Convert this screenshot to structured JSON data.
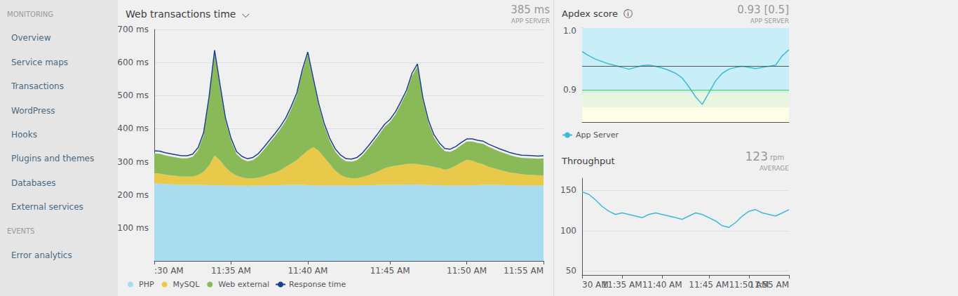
{
  "chart_data": [
    {
      "type": "area",
      "title": "Web transactions time  ⌵",
      "annotations": [
        "385 ms",
        "APP SERVER",
        "MONITORING",
        "Overview",
        "Service maps",
        "Transactions",
        "WordPress",
        "Hooks",
        "Plugins and themes",
        "Databases",
        "External services",
        "EVENTS",
        "Error analytics"
      ],
      "categories": [
        ":30 AM",
        null,
        null,
        null,
        null,
        null,
        null,
        null,
        null,
        null,
        null,
        null,
        null,
        null,
        "11:35 AM",
        null,
        null,
        null,
        null,
        null,
        null,
        null,
        null,
        null,
        null,
        null,
        null,
        null,
        "11:40 AM",
        null,
        null,
        null,
        null,
        null,
        null,
        null,
        null,
        null,
        null,
        null,
        null,
        null,
        null,
        "11:45 AM",
        null,
        null,
        null,
        null,
        null,
        null,
        null,
        null,
        null,
        null,
        null,
        null,
        null,
        "11:50 AM",
        null,
        null,
        null,
        null,
        null,
        null,
        null,
        null,
        null,
        null,
        null,
        null,
        null,
        "11:55 AM"
      ],
      "series": [
        {
          "name": "PHP",
          "type": "area",
          "color": "#aadcf0",
          "values": [
            235,
            234,
            233,
            232,
            231,
            230,
            230,
            230,
            230,
            230,
            229,
            229,
            229,
            228,
            228,
            228,
            228,
            227,
            228,
            228,
            228,
            229,
            229,
            229,
            230,
            230,
            230,
            230,
            229,
            229,
            228,
            228,
            228,
            228,
            228,
            228,
            228,
            228,
            229,
            229,
            229,
            230,
            230,
            230,
            230,
            230,
            231,
            231,
            231,
            230,
            230,
            229,
            229,
            228,
            228,
            228,
            228,
            228,
            229,
            229,
            230,
            230,
            230,
            230,
            229,
            229,
            229,
            228,
            228,
            228,
            228,
            228
          ]
        },
        {
          "name": "MySQL",
          "type": "area",
          "color": "#e8c94a",
          "values": [
            30,
            30,
            28,
            27,
            26,
            25,
            25,
            25,
            30,
            40,
            60,
            90,
            75,
            55,
            40,
            30,
            25,
            22,
            22,
            24,
            28,
            33,
            38,
            45,
            55,
            65,
            75,
            90,
            105,
            115,
            105,
            85,
            65,
            45,
            32,
            25,
            22,
            22,
            25,
            30,
            36,
            42,
            50,
            55,
            58,
            60,
            62,
            63,
            62,
            60,
            58,
            55,
            52,
            48,
            52,
            60,
            70,
            78,
            74,
            68,
            62,
            55,
            50,
            45,
            42,
            38,
            36,
            34,
            33,
            32,
            31,
            30
          ]
        },
        {
          "name": "Web external",
          "type": "area",
          "color": "#8aba58",
          "values": [
            60,
            60,
            58,
            57,
            56,
            55,
            55,
            60,
            75,
            110,
            200,
            310,
            220,
            140,
            95,
            65,
            55,
            52,
            55,
            65,
            80,
            95,
            110,
            125,
            140,
            165,
            195,
            250,
            290,
            200,
            135,
            95,
            70,
            58,
            52,
            48,
            50,
            55,
            65,
            80,
            95,
            110,
            125,
            135,
            155,
            185,
            215,
            265,
            295,
            195,
            130,
            90,
            68,
            56,
            50,
            50,
            52,
            55,
            58,
            60,
            62,
            60,
            58,
            56,
            54,
            52,
            50,
            50,
            50,
            50,
            50,
            52
          ]
        },
        {
          "name": "Response time",
          "type": "line",
          "color": "#1c3f8a",
          "values": [
            333,
            332,
            327,
            324,
            321,
            318,
            318,
            323,
            343,
            388,
            497,
            637,
            532,
            431,
            371,
            331,
            316,
            309,
            313,
            325,
            344,
            365,
            385,
            407,
            433,
            468,
            508,
            578,
            632,
            552,
            476,
            416,
            371,
            339,
            320,
            309,
            308,
            313,
            327,
            347,
            368,
            390,
            413,
            428,
            451,
            483,
            516,
            567,
            596,
            493,
            426,
            382,
            357,
            340,
            338,
            346,
            358,
            369,
            369,
            365,
            362,
            353,
            346,
            339,
            333,
            327,
            323,
            320,
            319,
            318,
            317,
            318
          ]
        }
      ],
      "stacked": true,
      "ylim": [
        0,
        700
      ],
      "yticks": [
        {
          "value": 100,
          "label": "100 ms"
        },
        {
          "value": 200,
          "label": "200 ms"
        },
        {
          "value": 300,
          "label": "300 ms"
        },
        {
          "value": 400,
          "label": "400 ms"
        },
        {
          "value": 500,
          "label": "500 ms"
        },
        {
          "value": 600,
          "label": "600 ms"
        },
        {
          "value": 700,
          "label": "700 ms"
        }
      ],
      "grid": true,
      "legend": "bottom-left"
    },
    {
      "type": "line",
      "title": "Apdex score  ⓘ",
      "annotations": [
        "0.93 [0.5]",
        "APP SERVER"
      ],
      "series": [
        {
          "name": "App Server",
          "color": "#3bbcd4",
          "values": [
            0.965,
            0.958,
            0.952,
            0.948,
            0.944,
            0.941,
            0.938,
            0.935,
            0.938,
            0.941,
            0.942,
            0.94,
            0.937,
            0.933,
            0.928,
            0.92,
            0.905,
            0.888,
            0.875,
            0.895,
            0.915,
            0.928,
            0.935,
            0.938,
            0.94,
            0.938,
            0.936,
            0.938,
            0.94,
            0.942,
            0.958,
            0.968
          ]
        }
      ],
      "bands": [
        {
          "from": 0.895,
          "to": 1.005,
          "color": "#c8eef8"
        },
        {
          "from": 0.87,
          "to": 0.895,
          "color": "#e8f5e0"
        },
        {
          "from": 0.845,
          "to": 0.87,
          "color": "#fdfde8"
        }
      ],
      "reference_lines": [
        {
          "y": 0.895,
          "color": "#55cc33"
        },
        {
          "y": 0.935,
          "color": "#555555"
        }
      ],
      "ylim": [
        0.845,
        1.005
      ],
      "yticks": [
        {
          "value": 1.0,
          "label": "1.0"
        },
        0.9
      ],
      "grid": true,
      "legend": "bottom-left",
      "tick_labels": "y"
    },
    {
      "type": "line",
      "title": "Throughput",
      "annotations": [
        "123",
        "rpm",
        "AVERAGE"
      ],
      "categories": [
        "30 AM",
        null,
        null,
        null,
        null,
        null,
        "11:35 AM",
        null,
        null,
        null,
        null,
        null,
        "11:40 AM",
        null,
        null,
        null,
        null,
        null,
        null,
        "11:45 AM",
        null,
        null,
        null,
        null,
        null,
        "11:50 AM",
        null,
        null,
        null,
        null,
        null,
        "11:55 AM"
      ],
      "color": "#3bbcd4",
      "values": [
        148,
        145,
        138,
        130,
        124,
        120,
        122,
        120,
        118,
        116,
        120,
        122,
        120,
        118,
        116,
        114,
        118,
        122,
        120,
        116,
        112,
        106,
        104,
        110,
        118,
        124,
        126,
        122,
        120,
        118,
        122,
        126
      ],
      "ylim": [
        45,
        165
      ],
      "yticks": [
        150,
        100,
        50
      ],
      "grid": true
    }
  ]
}
